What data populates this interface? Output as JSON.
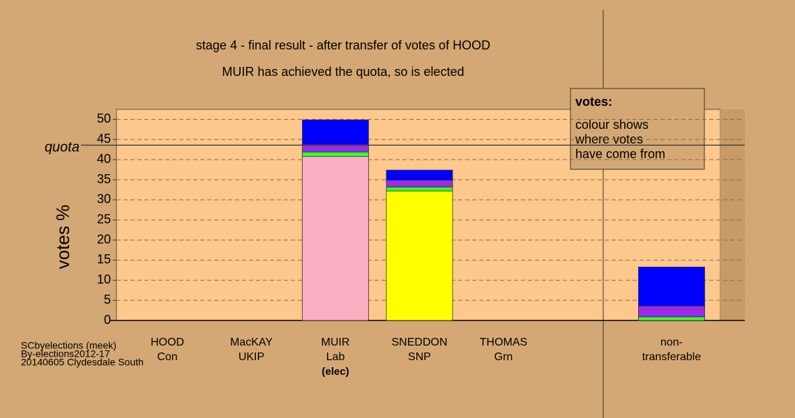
{
  "chart_data": {
    "type": "stacked_bar",
    "title": "stage 4 - final result - after transfer of votes of HOOD",
    "subtitle": "MUIR has achieved the quota, so is elected",
    "y_label": "votes %",
    "categories": [
      [
        "HOOD",
        "Con"
      ],
      [
        "MacKAY",
        "UKIP"
      ],
      [
        "MUIR",
        "Lab",
        "(elec)"
      ],
      [
        "SNEDDON",
        "SNP"
      ],
      [
        "THOMAS",
        "Grn"
      ],
      [
        "non-",
        "transferable"
      ]
    ],
    "series": [
      {
        "color": "#f9afc1",
        "values": [
          0,
          0,
          40.8,
          0,
          0,
          0
        ]
      },
      {
        "color": "#ffff00",
        "values": [
          0,
          0,
          0,
          32.2,
          0,
          0
        ]
      },
      {
        "color": "#33ff33",
        "values": [
          0,
          0,
          1.1,
          1.0,
          0,
          0.9
        ]
      },
      {
        "color": "#9a2be8",
        "values": [
          0,
          0,
          1.9,
          1.7,
          0,
          2.7
        ]
      },
      {
        "color": "#0000ff",
        "values": [
          0,
          0,
          6.1,
          2.5,
          0,
          9.7
        ]
      }
    ],
    "quota": {
      "label": "quota",
      "value": 43.6
    },
    "ylim": [
      0,
      52.5
    ],
    "yticks": [
      0,
      5,
      10,
      15,
      20,
      25,
      30,
      35,
      40,
      45,
      50
    ],
    "grid": true,
    "info_box": {
      "title": "votes:",
      "lines": [
        "colour shows",
        "where votes",
        "have come from"
      ]
    },
    "footer": [
      "SCbyelections (meek)",
      "By-elections2012-17",
      "20140605 Clydesdale South"
    ]
  }
}
